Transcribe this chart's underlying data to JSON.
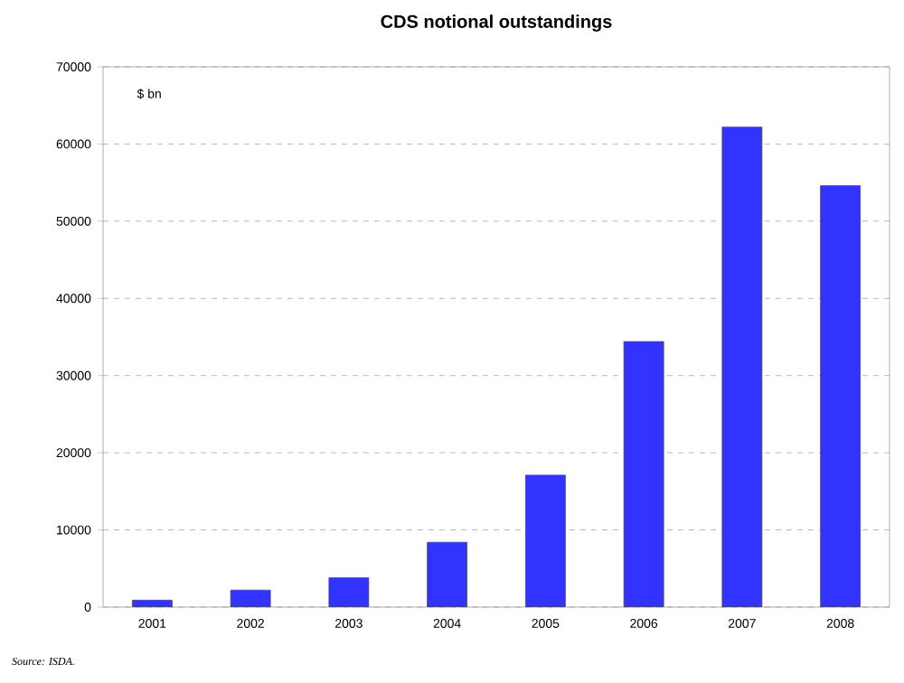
{
  "chart_data": {
    "type": "bar",
    "title": "CDS notional outstandings",
    "ylabel": "$ bn",
    "categories": [
      "2001",
      "2002",
      "2003",
      "2004",
      "2005",
      "2006",
      "2007",
      "2008"
    ],
    "values": [
      900,
      2200,
      3800,
      8400,
      17100,
      34400,
      62200,
      54600
    ],
    "color": "#3333ff",
    "ylim": [
      0,
      70000
    ],
    "yticks": [
      0,
      10000,
      20000,
      30000,
      40000,
      50000,
      60000,
      70000
    ],
    "grid": "y",
    "annotations": [
      "Source: ISDA."
    ]
  }
}
